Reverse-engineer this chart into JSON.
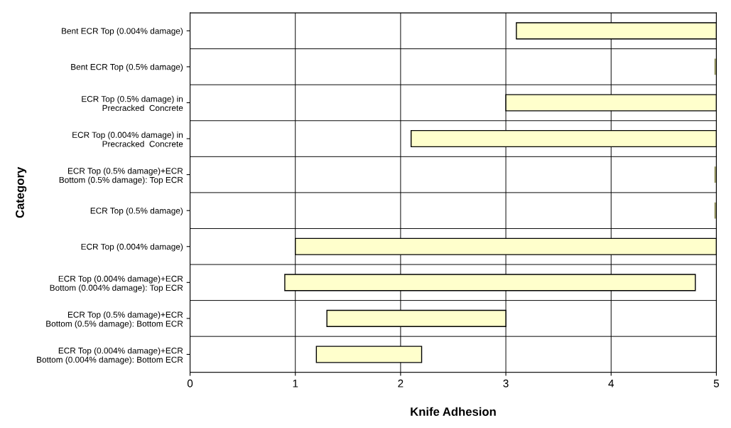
{
  "chart_data": {
    "type": "bar",
    "orientation": "horizontal",
    "xlabel": "Knife Adhesion",
    "ylabel": "Category",
    "categories": [
      "Bent ECR Top (0.004% damage)",
      "Bent ECR Top (0.5% damage)",
      "ECR Top (0.5% damage) in\nPrecracked  Concrete",
      "ECR Top (0.004% damage) in\nPrecracked  Concrete",
      "ECR Top (0.5% damage)+ECR\nBottom (0.5% damage): Top ECR",
      "ECR Top (0.5% damage)",
      "ECR Top (0.004% damage)",
      "ECR Top (0.004% damage)+ECR\nBottom (0.004% damage): Top ECR",
      "ECR Top (0.5% damage)+ECR\nBottom (0.5% damage): Bottom ECR",
      "ECR Top (0.004% damage)+ECR\nBottom (0.004% damage): Bottom ECR"
    ],
    "base": [
      3.1,
      5,
      3.0,
      2.1,
      5,
      5,
      1.0,
      0.9,
      1.3,
      1.2
    ],
    "values": [
      1.9,
      0,
      2.0,
      2.9,
      0,
      0,
      4.0,
      3.9,
      1.7,
      1.0
    ],
    "colors": [
      "#ffffcc",
      "#999966",
      "#ffffcc",
      "#ffffcc",
      "#999966",
      "#999966",
      "#ffffcc",
      "#ffffcc",
      "#ffffcc",
      "#ffffcc"
    ],
    "xlim": [
      0,
      5
    ],
    "xticks": [
      0,
      1,
      2,
      3,
      4,
      5
    ],
    "grid": true,
    "legend": false
  }
}
